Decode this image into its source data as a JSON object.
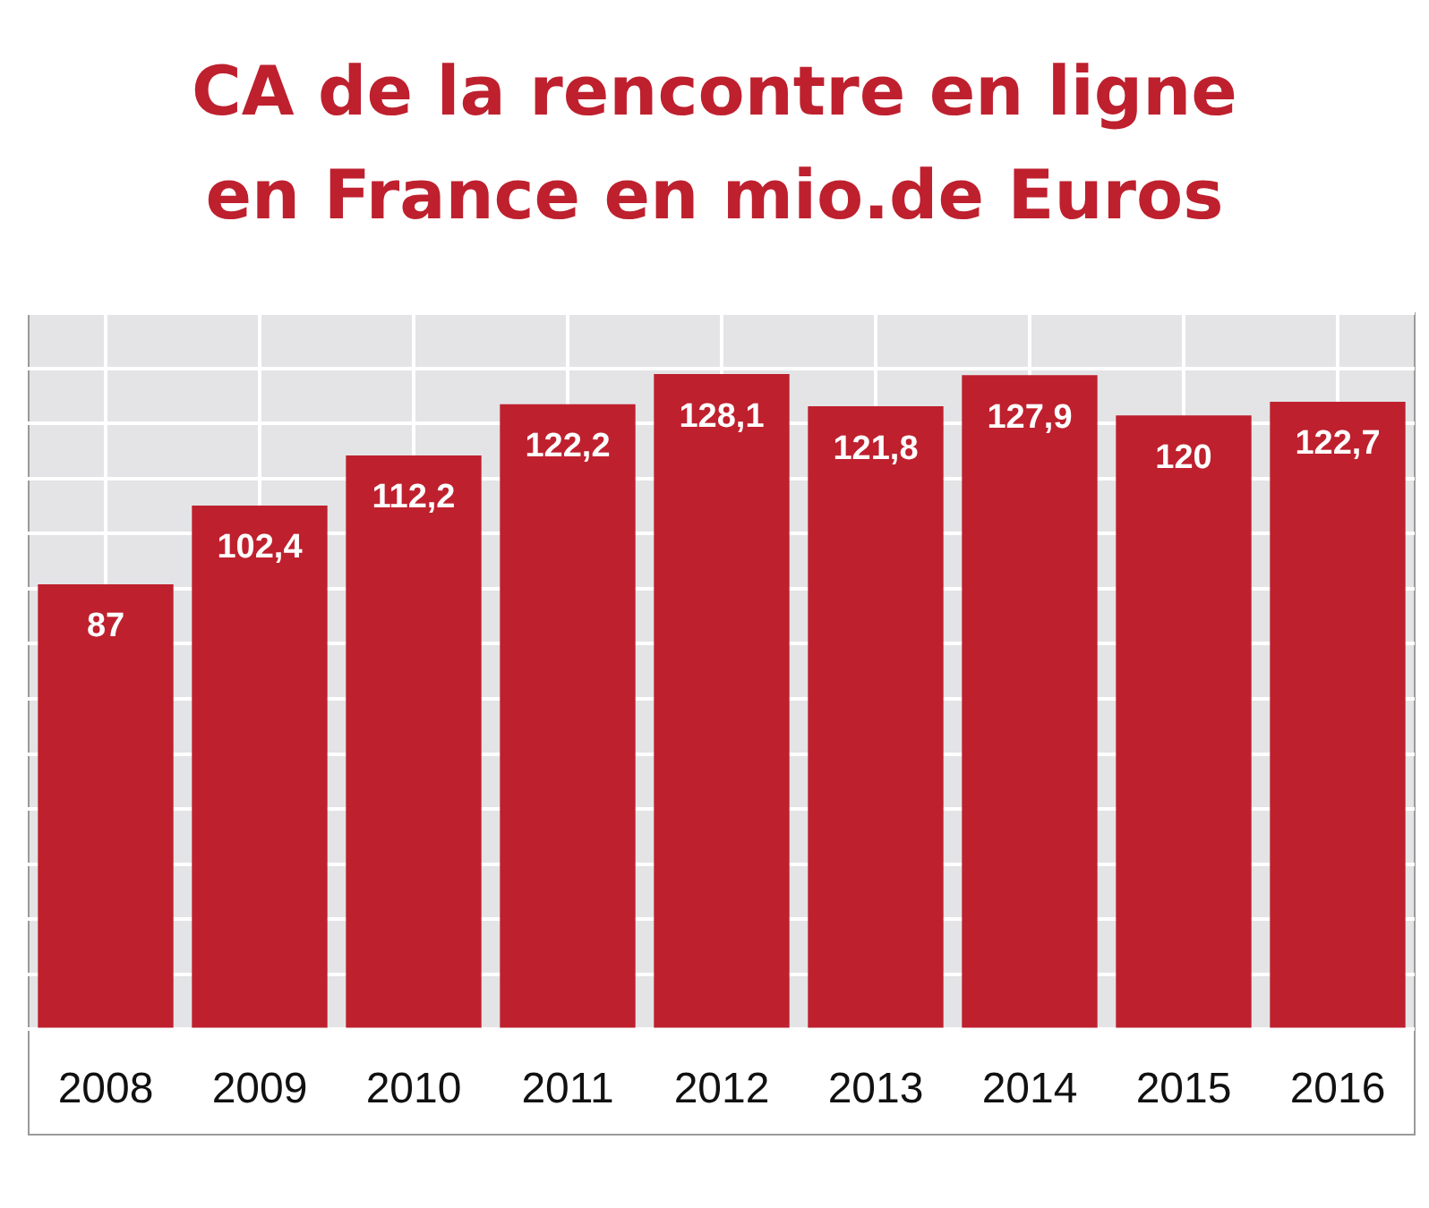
{
  "chart_data": {
    "type": "bar",
    "title": "CA de la rencontre en ligne\nen France en mio.de Euros",
    "categories": [
      "2008",
      "2009",
      "2010",
      "2011",
      "2012",
      "2013",
      "2014",
      "2015",
      "2016"
    ],
    "values": [
      87,
      102.4,
      112.2,
      122.2,
      128.1,
      121.8,
      127.9,
      120,
      122.7
    ],
    "value_labels": [
      "87",
      "102,4",
      "112,2",
      "122,2",
      "128,1",
      "121,8",
      "127,9",
      "120",
      "122,7"
    ],
    "color": "#be202e",
    "grid": true,
    "tick_labels": "x",
    "legend": false
  }
}
